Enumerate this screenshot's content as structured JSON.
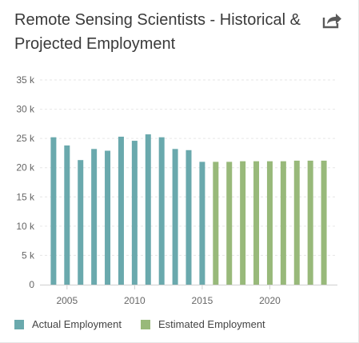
{
  "header": {
    "title": "Remote Sensing Scientists - Historical & Projected Employment",
    "share_icon": "share-icon"
  },
  "colors": {
    "actual": "#6aa9ad",
    "estimated": "#98b97a",
    "grid": "#e6e6e6",
    "axis_text": "#666666"
  },
  "chart_data": {
    "type": "bar",
    "title": "Remote Sensing Scientists - Historical & Projected Employment",
    "xlabel": "",
    "ylabel": "",
    "ylim": [
      0,
      35000
    ],
    "yticks": [
      0,
      5000,
      10000,
      15000,
      20000,
      25000,
      30000,
      35000
    ],
    "ytick_labels": [
      "0",
      "5 k",
      "10 k",
      "15 k",
      "20 k",
      "25 k",
      "30 k",
      "35 k"
    ],
    "xlim": [
      2003,
      2025
    ],
    "xticks": [
      2005,
      2010,
      2015,
      2020
    ],
    "xtick_labels": [
      "2005",
      "2010",
      "2015",
      "2020"
    ],
    "grid": true,
    "legend_position": "bottom-left",
    "series": [
      {
        "name": "Actual Employment",
        "x": [
          2004,
          2005,
          2006,
          2007,
          2008,
          2009,
          2010,
          2011,
          2012,
          2013,
          2014,
          2015
        ],
        "values": [
          25200,
          23800,
          21300,
          23200,
          22900,
          25300,
          24600,
          25700,
          25200,
          23200,
          23000,
          21000
        ]
      },
      {
        "name": "Estimated Employment",
        "x": [
          2016,
          2017,
          2018,
          2019,
          2020,
          2021,
          2022,
          2023,
          2024
        ],
        "values": [
          21000,
          21000,
          21100,
          21100,
          21100,
          21100,
          21200,
          21200,
          21200
        ]
      }
    ]
  }
}
